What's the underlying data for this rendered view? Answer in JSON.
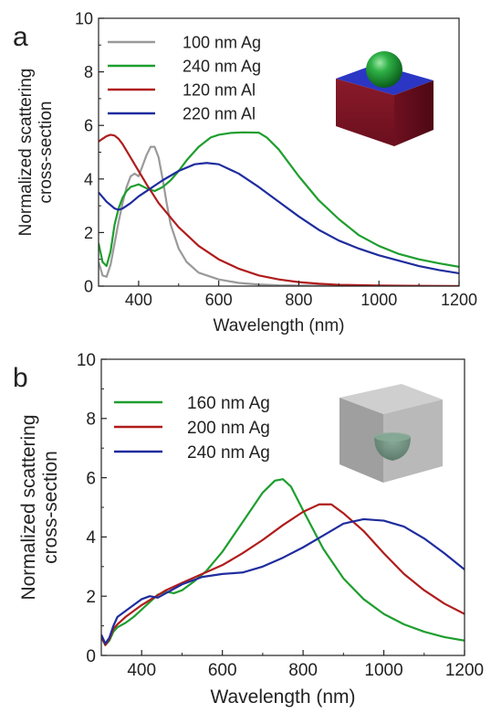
{
  "chart_data": [
    {
      "panel": "a",
      "type": "line",
      "xlabel": "Wavelength (nm)",
      "ylabel": [
        "Normalized scattering",
        "cross-section"
      ],
      "xlim": [
        300,
        1200
      ],
      "ylim": [
        0,
        10
      ],
      "xticks": [
        400,
        600,
        800,
        1000,
        1200
      ],
      "yticks": [
        0,
        2,
        4,
        6,
        8,
        10
      ],
      "legend": "top-left",
      "series": [
        {
          "name": "100 nm Ag",
          "color": "#9a9a9a",
          "x": [
            300,
            310,
            320,
            330,
            340,
            350,
            360,
            370,
            380,
            390,
            400,
            410,
            420,
            430,
            440,
            450,
            460,
            470,
            480,
            500,
            520,
            550,
            600,
            650,
            700,
            750,
            800,
            900,
            1000,
            1100,
            1200
          ],
          "y": [
            0.9,
            0.4,
            0.35,
            0.8,
            1.6,
            2.4,
            3.1,
            3.7,
            4.1,
            4.2,
            4.1,
            4.5,
            4.9,
            5.2,
            5.2,
            4.8,
            4.0,
            3.1,
            2.3,
            1.4,
            0.9,
            0.5,
            0.25,
            0.12,
            0.06,
            0.03,
            0.02,
            0.01,
            0.01,
            0.0,
            0.0
          ]
        },
        {
          "name": "240 nm Ag",
          "color": "#1e9e2e",
          "x": [
            300,
            310,
            320,
            330,
            340,
            350,
            360,
            370,
            380,
            390,
            400,
            420,
            440,
            460,
            480,
            500,
            520,
            550,
            580,
            600,
            630,
            660,
            700,
            720,
            750,
            800,
            850,
            900,
            950,
            1000,
            1050,
            1100,
            1150,
            1200
          ],
          "y": [
            1.6,
            0.9,
            0.75,
            1.3,
            2.3,
            2.9,
            3.3,
            3.55,
            3.7,
            3.75,
            3.8,
            3.65,
            3.55,
            3.7,
            3.95,
            4.3,
            4.7,
            5.2,
            5.55,
            5.65,
            5.72,
            5.74,
            5.73,
            5.55,
            5.1,
            4.1,
            3.2,
            2.5,
            1.9,
            1.5,
            1.2,
            1.0,
            0.85,
            0.72
          ]
        },
        {
          "name": "120 nm Al",
          "color": "#b01c1c",
          "x": [
            300,
            310,
            320,
            330,
            340,
            350,
            360,
            380,
            400,
            420,
            450,
            500,
            550,
            600,
            650,
            700,
            750,
            800,
            850,
            900,
            1000,
            1100,
            1200
          ],
          "y": [
            5.4,
            5.5,
            5.6,
            5.65,
            5.62,
            5.5,
            5.3,
            4.8,
            4.3,
            3.8,
            3.1,
            2.2,
            1.5,
            1.0,
            0.65,
            0.4,
            0.25,
            0.15,
            0.09,
            0.05,
            0.02,
            0.01,
            0.0
          ]
        },
        {
          "name": "220 nm Al",
          "color": "#1f2c9e",
          "x": [
            300,
            320,
            340,
            350,
            360,
            380,
            400,
            430,
            460,
            500,
            540,
            570,
            600,
            650,
            700,
            750,
            800,
            850,
            900,
            950,
            1000,
            1050,
            1100,
            1150,
            1200
          ],
          "y": [
            3.5,
            3.15,
            2.9,
            2.85,
            2.9,
            3.1,
            3.35,
            3.65,
            3.95,
            4.3,
            4.55,
            4.6,
            4.55,
            4.2,
            3.7,
            3.15,
            2.6,
            2.1,
            1.7,
            1.4,
            1.15,
            0.95,
            0.75,
            0.6,
            0.48
          ]
        }
      ]
    },
    {
      "panel": "b",
      "type": "line",
      "xlabel": "Wavelength (nm)",
      "ylabel": [
        "Normalized scattering",
        "cross-section"
      ],
      "xlim": [
        300,
        1200
      ],
      "ylim": [
        0,
        10
      ],
      "xticks": [
        400,
        600,
        800,
        1000,
        1200
      ],
      "yticks": [
        0,
        2,
        4,
        6,
        8,
        10
      ],
      "legend": "top-left",
      "series": [
        {
          "name": "160 nm Ag",
          "color": "#1e9e2e",
          "x": [
            300,
            310,
            320,
            330,
            340,
            360,
            380,
            400,
            420,
            440,
            460,
            480,
            500,
            530,
            560,
            600,
            650,
            700,
            730,
            750,
            770,
            800,
            850,
            900,
            950,
            1000,
            1050,
            1100,
            1150,
            1200
          ],
          "y": [
            0.6,
            0.35,
            0.5,
            0.8,
            0.95,
            1.1,
            1.3,
            1.55,
            1.8,
            2.05,
            2.15,
            2.1,
            2.2,
            2.5,
            2.85,
            3.5,
            4.5,
            5.5,
            5.9,
            5.95,
            5.7,
            4.9,
            3.6,
            2.6,
            1.9,
            1.4,
            1.05,
            0.8,
            0.62,
            0.5
          ]
        },
        {
          "name": "200 nm Ag",
          "color": "#b01c1c",
          "x": [
            300,
            310,
            320,
            330,
            340,
            360,
            380,
            400,
            430,
            460,
            500,
            550,
            600,
            650,
            700,
            750,
            800,
            840,
            870,
            900,
            950,
            1000,
            1050,
            1100,
            1150,
            1200
          ],
          "y": [
            0.65,
            0.35,
            0.55,
            0.9,
            1.05,
            1.3,
            1.5,
            1.7,
            1.95,
            2.2,
            2.45,
            2.75,
            3.05,
            3.45,
            3.9,
            4.4,
            4.85,
            5.1,
            5.1,
            4.8,
            4.2,
            3.45,
            2.75,
            2.2,
            1.75,
            1.4
          ]
        },
        {
          "name": "240 nm Ag",
          "color": "#1f2c9e",
          "x": [
            300,
            310,
            320,
            330,
            340,
            360,
            380,
            400,
            420,
            440,
            460,
            500,
            550,
            600,
            650,
            700,
            750,
            800,
            850,
            900,
            950,
            1000,
            1050,
            1100,
            1150,
            1200
          ],
          "y": [
            0.7,
            0.4,
            0.6,
            1.0,
            1.3,
            1.5,
            1.7,
            1.9,
            2.0,
            1.95,
            2.1,
            2.4,
            2.65,
            2.75,
            2.8,
            3.0,
            3.3,
            3.65,
            4.05,
            4.45,
            4.6,
            4.55,
            4.35,
            3.95,
            3.45,
            2.9
          ]
        }
      ]
    }
  ],
  "panels": {
    "a": {
      "label": "a"
    },
    "b": {
      "label": "b"
    }
  }
}
